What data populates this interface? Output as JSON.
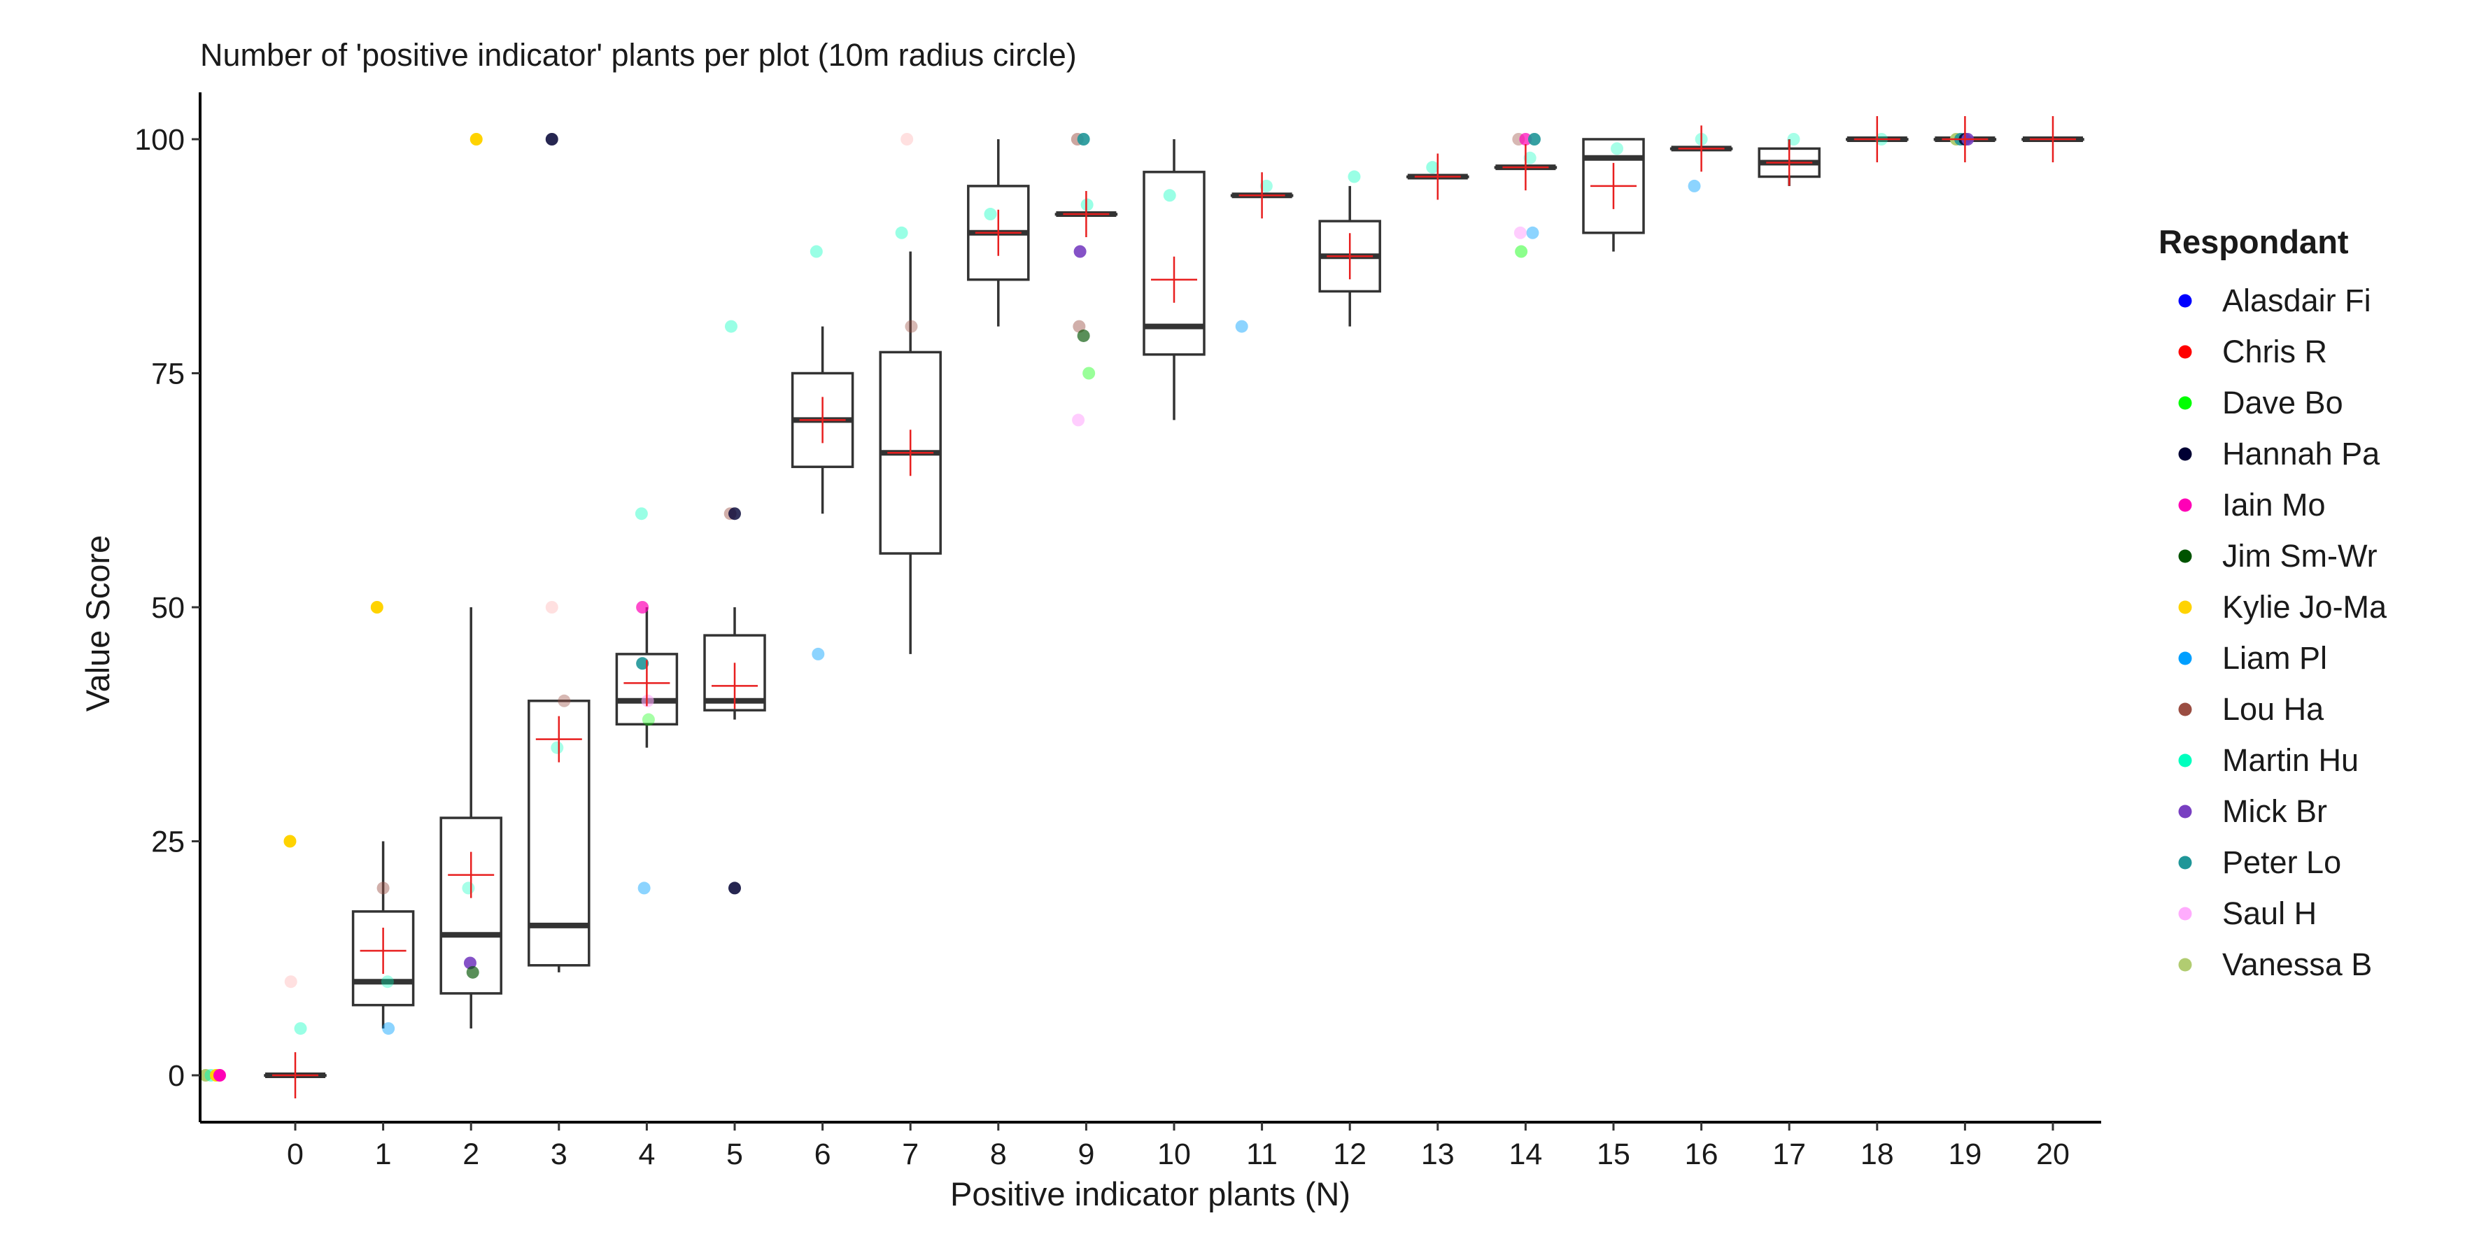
{
  "chart_data": {
    "type": "boxplot+scatter",
    "title": "Number of 'positive indicator' plants per plot (10m radius circle)",
    "xlabel": "Positive indicator plants (N)",
    "ylabel": "Value Score",
    "ylim": [
      -5,
      105
    ],
    "y_ticks": [
      0,
      25,
      50,
      75,
      100
    ],
    "categories": [
      "0",
      "1",
      "2",
      "3",
      "4",
      "5",
      "6",
      "7",
      "8",
      "9",
      "10",
      "11",
      "12",
      "13",
      "14",
      "15",
      "16",
      "17",
      "18",
      "19",
      "20"
    ],
    "grid": false,
    "legend": {
      "title": "Respondant",
      "position": "right",
      "entries": [
        {
          "name": "Alasdair Fi",
          "color": "#0000ff"
        },
        {
          "name": "Chris R",
          "color": "#ff0000"
        },
        {
          "name": "Dave Bo",
          "color": "#00ff00"
        },
        {
          "name": "Hannah Pa",
          "color": "#000033"
        },
        {
          "name": "Iain Mo",
          "color": "#ff00b6"
        },
        {
          "name": "Jim Sm-Wr",
          "color": "#005300"
        },
        {
          "name": "Kylie Jo-Ma",
          "color": "#ffd300"
        },
        {
          "name": "Liam Pl",
          "color": "#009fff"
        },
        {
          "name": "Lou Ha",
          "color": "#9a4d42"
        },
        {
          "name": "Martin Hu",
          "color": "#00ffbe"
        },
        {
          "name": "Mick Br",
          "color": "#783fc1"
        },
        {
          "name": "Peter Lo",
          "color": "#1f9698"
        },
        {
          "name": "Saul H",
          "color": "#ffacfd"
        },
        {
          "name": "Vanessa B",
          "color": "#b1cc71"
        }
      ]
    },
    "boxes": [
      {
        "x": "0",
        "min": 0,
        "q1": 0,
        "median": 0,
        "q3": 0,
        "max": 0,
        "mean": 0
      },
      {
        "x": "1",
        "min": 5,
        "q1": 7.5,
        "median": 10,
        "q3": 17.5,
        "max": 25,
        "mean": 13.3
      },
      {
        "x": "2",
        "min": 5,
        "q1": 8.75,
        "median": 15,
        "q3": 27.5,
        "max": 50,
        "mean": 21.4
      },
      {
        "x": "3",
        "min": 11,
        "q1": 11.75,
        "median": 16,
        "q3": 40,
        "max": 40,
        "mean": 35.9
      },
      {
        "x": "4",
        "min": 35,
        "q1": 37.5,
        "median": 40,
        "q3": 45,
        "max": 50,
        "mean": 41.9
      },
      {
        "x": "5",
        "min": 38,
        "q1": 39,
        "median": 40,
        "q3": 47,
        "max": 50,
        "mean": 41.6
      },
      {
        "x": "6",
        "min": 60,
        "q1": 65,
        "median": 70,
        "q3": 75,
        "max": 80,
        "mean": 70
      },
      {
        "x": "7",
        "min": 45,
        "q1": 55.75,
        "median": 66.5,
        "q3": 77.25,
        "max": 88,
        "mean": 66.5
      },
      {
        "x": "8",
        "min": 80,
        "q1": 85,
        "median": 90,
        "q3": 95,
        "max": 100,
        "mean": 90
      },
      {
        "x": "9",
        "min": 92,
        "q1": 92,
        "median": 92,
        "q3": 92,
        "max": 92,
        "mean": 92
      },
      {
        "x": "10",
        "min": 70,
        "q1": 77,
        "median": 80,
        "q3": 96.5,
        "max": 100,
        "mean": 85
      },
      {
        "x": "11",
        "min": 94,
        "q1": 94,
        "median": 94,
        "q3": 94,
        "max": 94,
        "mean": 94
      },
      {
        "x": "12",
        "min": 80,
        "q1": 83.75,
        "median": 87.5,
        "q3": 91.25,
        "max": 95,
        "mean": 87.5
      },
      {
        "x": "13",
        "min": 96,
        "q1": 96,
        "median": 96,
        "q3": 96,
        "max": 96,
        "mean": 96
      },
      {
        "x": "14",
        "min": 97,
        "q1": 97,
        "median": 97,
        "q3": 97,
        "max": 97,
        "mean": 97
      },
      {
        "x": "15",
        "min": 88,
        "q1": 90,
        "median": 98,
        "q3": 100,
        "max": 100,
        "mean": 95
      },
      {
        "x": "16",
        "min": 99,
        "q1": 99,
        "median": 99,
        "q3": 99,
        "max": 99,
        "mean": 99
      },
      {
        "x": "17",
        "min": 95,
        "q1": 96,
        "median": 97.5,
        "q3": 99,
        "max": 100,
        "mean": 97.5
      },
      {
        "x": "18",
        "min": 100,
        "q1": 100,
        "median": 100,
        "q3": 100,
        "max": 100,
        "mean": 100
      },
      {
        "x": "19",
        "min": 100,
        "q1": 100,
        "median": 100,
        "q3": 100,
        "max": 100,
        "mean": 100
      },
      {
        "x": "20",
        "min": 100,
        "q1": 100,
        "median": 100,
        "q3": 100,
        "max": 100,
        "mean": 100
      }
    ],
    "points": [
      {
        "x": -1.02,
        "y": 0,
        "color": "#b1cc71",
        "alpha": 1
      },
      {
        "x": -0.96,
        "y": 0,
        "color": "#00ffbe",
        "alpha": 0.5
      },
      {
        "x": -0.9,
        "y": 0,
        "color": "#ffd300",
        "alpha": 1
      },
      {
        "x": -0.86,
        "y": 0,
        "color": "#ff00b6",
        "alpha": 1
      },
      {
        "x": -0.06,
        "y": 25,
        "color": "#ffd300",
        "alpha": 1
      },
      {
        "x": -0.05,
        "y": 10,
        "color": "#ffd3d3",
        "alpha": 0.7
      },
      {
        "x": 0.06,
        "y": 5,
        "color": "#00ffbe",
        "alpha": 0.4
      },
      {
        "x": 0.93,
        "y": 50,
        "color": "#ffd300",
        "alpha": 1
      },
      {
        "x": 1.0,
        "y": 20,
        "color": "#9a4d42",
        "alpha": 0.45
      },
      {
        "x": 1.05,
        "y": 10,
        "color": "#00ffbe",
        "alpha": 0.35
      },
      {
        "x": 1.06,
        "y": 5,
        "color": "#009fff",
        "alpha": 0.45
      },
      {
        "x": 2.06,
        "y": 100,
        "color": "#ffd300",
        "alpha": 1
      },
      {
        "x": 1.97,
        "y": 20,
        "color": "#00ffbe",
        "alpha": 0.35
      },
      {
        "x": 1.99,
        "y": 12,
        "color": "#783fc1",
        "alpha": 0.9
      },
      {
        "x": 2.02,
        "y": 11,
        "color": "#005300",
        "alpha": 0.65
      },
      {
        "x": 2.92,
        "y": 100,
        "color": "#000033",
        "alpha": 0.85
      },
      {
        "x": 2.92,
        "y": 50,
        "color": "#ffd3d3",
        "alpha": 0.7
      },
      {
        "x": 3.06,
        "y": 40,
        "color": "#9a4d42",
        "alpha": 0.4
      },
      {
        "x": 2.98,
        "y": 35,
        "color": "#00ffbe",
        "alpha": 0.35
      },
      {
        "x": 3.94,
        "y": 60,
        "color": "#00ffbe",
        "alpha": 0.4
      },
      {
        "x": 3.95,
        "y": 50,
        "color": "#ff00b6",
        "alpha": 0.7
      },
      {
        "x": 3.95,
        "y": 44,
        "color": "#1f9698",
        "alpha": 0.9
      },
      {
        "x": 4.01,
        "y": 40,
        "color": "#ffacfd",
        "alpha": 0.6
      },
      {
        "x": 4.02,
        "y": 38,
        "color": "#00ff00",
        "alpha": 0.35
      },
      {
        "x": 3.97,
        "y": 20,
        "color": "#009fff",
        "alpha": 0.45
      },
      {
        "x": 4.96,
        "y": 80,
        "color": "#00ffbe",
        "alpha": 0.4
      },
      {
        "x": 4.95,
        "y": 60,
        "color": "#9a4d42",
        "alpha": 0.45
      },
      {
        "x": 5.0,
        "y": 60,
        "color": "#000033",
        "alpha": 0.8
      },
      {
        "x": 5.0,
        "y": 20,
        "color": "#000033",
        "alpha": 0.85
      },
      {
        "x": 5.93,
        "y": 88,
        "color": "#00ffbe",
        "alpha": 0.4
      },
      {
        "x": 5.95,
        "y": 45,
        "color": "#009fff",
        "alpha": 0.45
      },
      {
        "x": 6.9,
        "y": 90,
        "color": "#00ffbe",
        "alpha": 0.4
      },
      {
        "x": 6.96,
        "y": 100,
        "color": "#ffd3d3",
        "alpha": 0.7
      },
      {
        "x": 7.01,
        "y": 80,
        "color": "#9a4d42",
        "alpha": 0.4
      },
      {
        "x": 7.91,
        "y": 92,
        "color": "#00ffbe",
        "alpha": 0.4
      },
      {
        "x": 8.9,
        "y": 100,
        "color": "#9a4d42",
        "alpha": 0.5
      },
      {
        "x": 8.97,
        "y": 100,
        "color": "#1f9698",
        "alpha": 0.9
      },
      {
        "x": 9.01,
        "y": 93,
        "color": "#00ffbe",
        "alpha": 0.4
      },
      {
        "x": 8.93,
        "y": 88,
        "color": "#783fc1",
        "alpha": 0.9
      },
      {
        "x": 8.92,
        "y": 80,
        "color": "#9a4d42",
        "alpha": 0.45
      },
      {
        "x": 8.97,
        "y": 79,
        "color": "#005300",
        "alpha": 0.65
      },
      {
        "x": 9.03,
        "y": 75,
        "color": "#00ff00",
        "alpha": 0.4
      },
      {
        "x": 8.91,
        "y": 70,
        "color": "#ffacfd",
        "alpha": 0.6
      },
      {
        "x": 9.95,
        "y": 94,
        "color": "#00ffbe",
        "alpha": 0.4
      },
      {
        "x": 10.77,
        "y": 80,
        "color": "#009fff",
        "alpha": 0.45
      },
      {
        "x": 11.05,
        "y": 95,
        "color": "#00ffbe",
        "alpha": 0.35
      },
      {
        "x": 12.05,
        "y": 96,
        "color": "#00ffbe",
        "alpha": 0.4
      },
      {
        "x": 12.94,
        "y": 97,
        "color": "#00ffbe",
        "alpha": 0.4
      },
      {
        "x": 13.92,
        "y": 100,
        "color": "#9a4d42",
        "alpha": 0.4
      },
      {
        "x": 14.0,
        "y": 100,
        "color": "#ff00b6",
        "alpha": 0.7
      },
      {
        "x": 14.1,
        "y": 100,
        "color": "#1f9698",
        "alpha": 0.9
      },
      {
        "x": 14.05,
        "y": 98,
        "color": "#00ffbe",
        "alpha": 0.35
      },
      {
        "x": 14.08,
        "y": 90,
        "color": "#009fff",
        "alpha": 0.45
      },
      {
        "x": 13.94,
        "y": 90,
        "color": "#ffacfd",
        "alpha": 0.6
      },
      {
        "x": 13.95,
        "y": 88,
        "color": "#00ff00",
        "alpha": 0.45
      },
      {
        "x": 15.04,
        "y": 99,
        "color": "#00ffbe",
        "alpha": 0.35
      },
      {
        "x": 16.0,
        "y": 100,
        "color": "#00ffbe",
        "alpha": 0.35
      },
      {
        "x": 15.92,
        "y": 95,
        "color": "#009fff",
        "alpha": 0.45
      },
      {
        "x": 17.05,
        "y": 100,
        "color": "#00ffbe",
        "alpha": 0.35
      },
      {
        "x": 18.05,
        "y": 100,
        "color": "#00ffbe",
        "alpha": 0.35
      },
      {
        "x": 18.9,
        "y": 100,
        "color": "#b1cc71",
        "alpha": 1
      },
      {
        "x": 18.95,
        "y": 100,
        "color": "#1f9698",
        "alpha": 0.9
      },
      {
        "x": 19.0,
        "y": 100,
        "color": "#000033",
        "alpha": 0.85
      },
      {
        "x": 19.03,
        "y": 100,
        "color": "#783fc1",
        "alpha": 0.9
      }
    ],
    "box_color": "#333333",
    "mean_marker_color": "#e81f1f",
    "median_color": "#333333"
  }
}
